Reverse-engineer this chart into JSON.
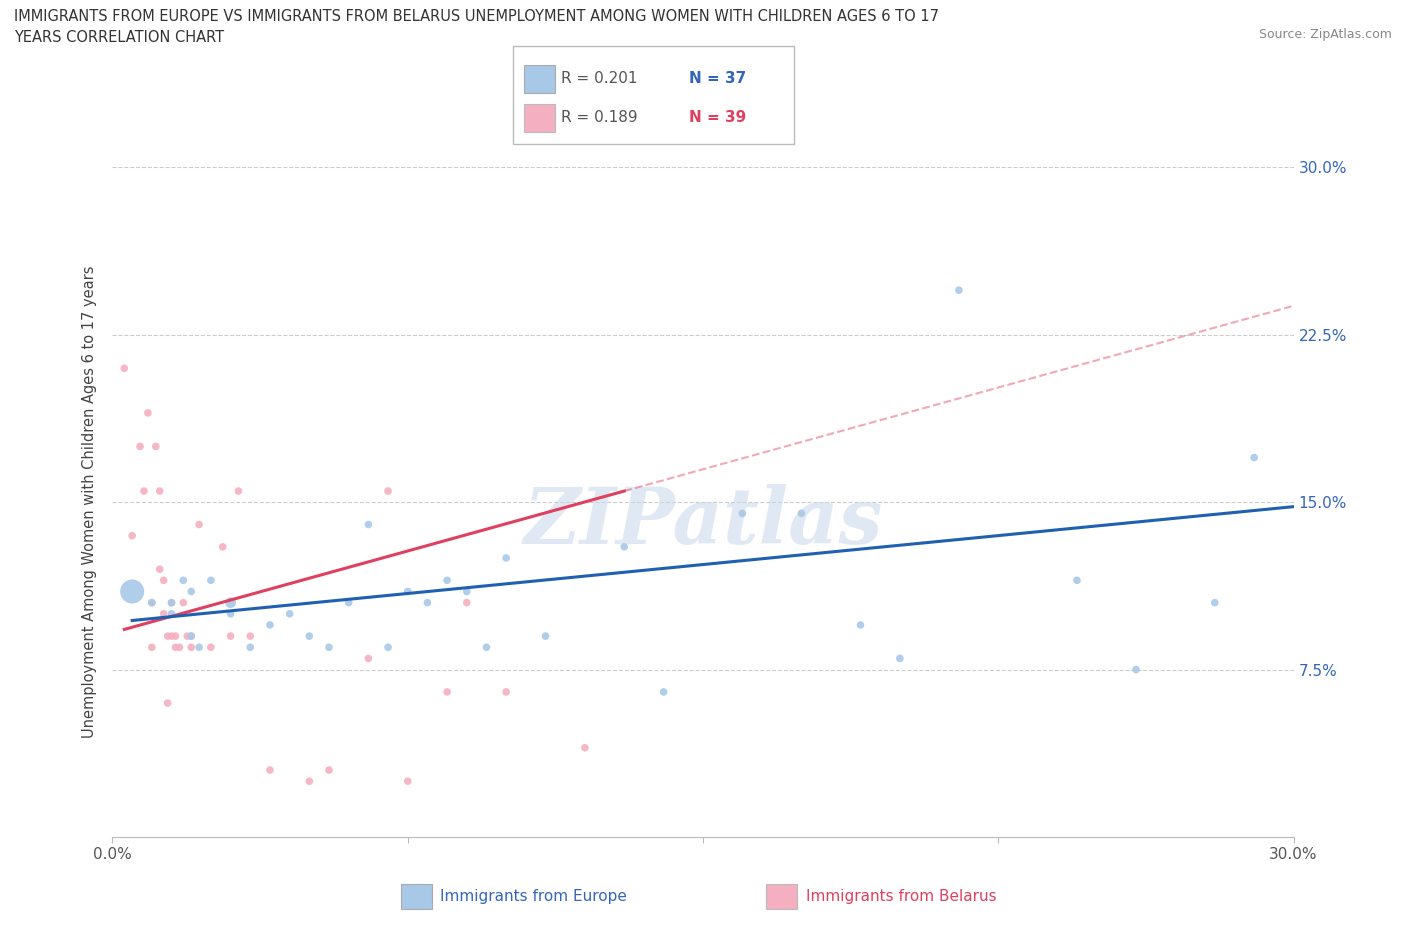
{
  "title": "IMMIGRANTS FROM EUROPE VS IMMIGRANTS FROM BELARUS UNEMPLOYMENT AMONG WOMEN WITH CHILDREN AGES 6 TO 17\nYEARS CORRELATION CHART",
  "source": "Source: ZipAtlas.com",
  "ylabel": "Unemployment Among Women with Children Ages 6 to 17 years",
  "xlim": [
    0.0,
    0.3
  ],
  "ylim": [
    0.0,
    0.3
  ],
  "yticks": [
    0.075,
    0.15,
    0.225,
    0.3
  ],
  "ytick_labels": [
    "7.5%",
    "15.0%",
    "22.5%",
    "30.0%"
  ],
  "xticks": [
    0.0,
    0.075,
    0.15,
    0.225,
    0.3
  ],
  "xtick_labels": [
    "0.0%",
    "",
    "",
    "",
    "30.0%"
  ],
  "legend_r_europe": "R = 0.201",
  "legend_n_europe": "N = 37",
  "legend_r_belarus": "R = 0.189",
  "legend_n_belarus": "N = 39",
  "europe_color": "#a8c8e8",
  "europe_line_color": "#2060b0",
  "belarus_color": "#f4b0c0",
  "belarus_line_color": "#e04060",
  "watermark": "ZIPatlas",
  "europe_x": [
    0.005,
    0.01,
    0.015,
    0.015,
    0.018,
    0.02,
    0.02,
    0.022,
    0.025,
    0.03,
    0.03,
    0.035,
    0.04,
    0.045,
    0.05,
    0.055,
    0.06,
    0.065,
    0.07,
    0.075,
    0.08,
    0.085,
    0.09,
    0.095,
    0.1,
    0.11,
    0.13,
    0.14,
    0.16,
    0.175,
    0.19,
    0.2,
    0.215,
    0.245,
    0.26,
    0.28,
    0.29
  ],
  "europe_y": [
    0.11,
    0.105,
    0.105,
    0.1,
    0.115,
    0.11,
    0.09,
    0.085,
    0.115,
    0.105,
    0.1,
    0.085,
    0.095,
    0.1,
    0.09,
    0.085,
    0.105,
    0.14,
    0.085,
    0.11,
    0.105,
    0.115,
    0.11,
    0.085,
    0.125,
    0.09,
    0.13,
    0.065,
    0.145,
    0.145,
    0.095,
    0.08,
    0.245,
    0.115,
    0.075,
    0.105,
    0.17
  ],
  "europe_size": [
    300,
    30,
    30,
    30,
    30,
    30,
    30,
    30,
    30,
    60,
    30,
    30,
    30,
    30,
    30,
    30,
    30,
    30,
    30,
    30,
    30,
    30,
    30,
    30,
    30,
    30,
    30,
    30,
    30,
    30,
    30,
    30,
    30,
    30,
    30,
    30,
    30
  ],
  "belarus_x": [
    0.003,
    0.005,
    0.007,
    0.008,
    0.009,
    0.01,
    0.01,
    0.011,
    0.012,
    0.012,
    0.013,
    0.013,
    0.014,
    0.014,
    0.015,
    0.015,
    0.016,
    0.016,
    0.017,
    0.018,
    0.019,
    0.02,
    0.02,
    0.022,
    0.025,
    0.028,
    0.03,
    0.032,
    0.035,
    0.04,
    0.05,
    0.055,
    0.065,
    0.07,
    0.075,
    0.085,
    0.09,
    0.1,
    0.12
  ],
  "belarus_y": [
    0.21,
    0.135,
    0.175,
    0.155,
    0.19,
    0.105,
    0.085,
    0.175,
    0.155,
    0.12,
    0.1,
    0.115,
    0.09,
    0.06,
    0.09,
    0.105,
    0.085,
    0.09,
    0.085,
    0.105,
    0.09,
    0.09,
    0.085,
    0.14,
    0.085,
    0.13,
    0.09,
    0.155,
    0.09,
    0.03,
    0.025,
    0.03,
    0.08,
    0.155,
    0.025,
    0.065,
    0.105,
    0.065,
    0.04
  ],
  "belarus_size": [
    30,
    30,
    30,
    30,
    30,
    30,
    30,
    30,
    30,
    30,
    30,
    30,
    30,
    30,
    30,
    30,
    30,
    30,
    30,
    30,
    30,
    30,
    30,
    30,
    30,
    30,
    30,
    30,
    30,
    30,
    30,
    30,
    30,
    30,
    30,
    30,
    30,
    30,
    30
  ],
  "belarus_line_x_start": 0.003,
  "belarus_line_x_end": 0.13,
  "belarus_line_y_start": 0.093,
  "belarus_line_y_end": 0.155,
  "europe_line_x_start": 0.005,
  "europe_line_x_end": 0.3,
  "europe_line_y_start": 0.097,
  "europe_line_y_end": 0.148
}
